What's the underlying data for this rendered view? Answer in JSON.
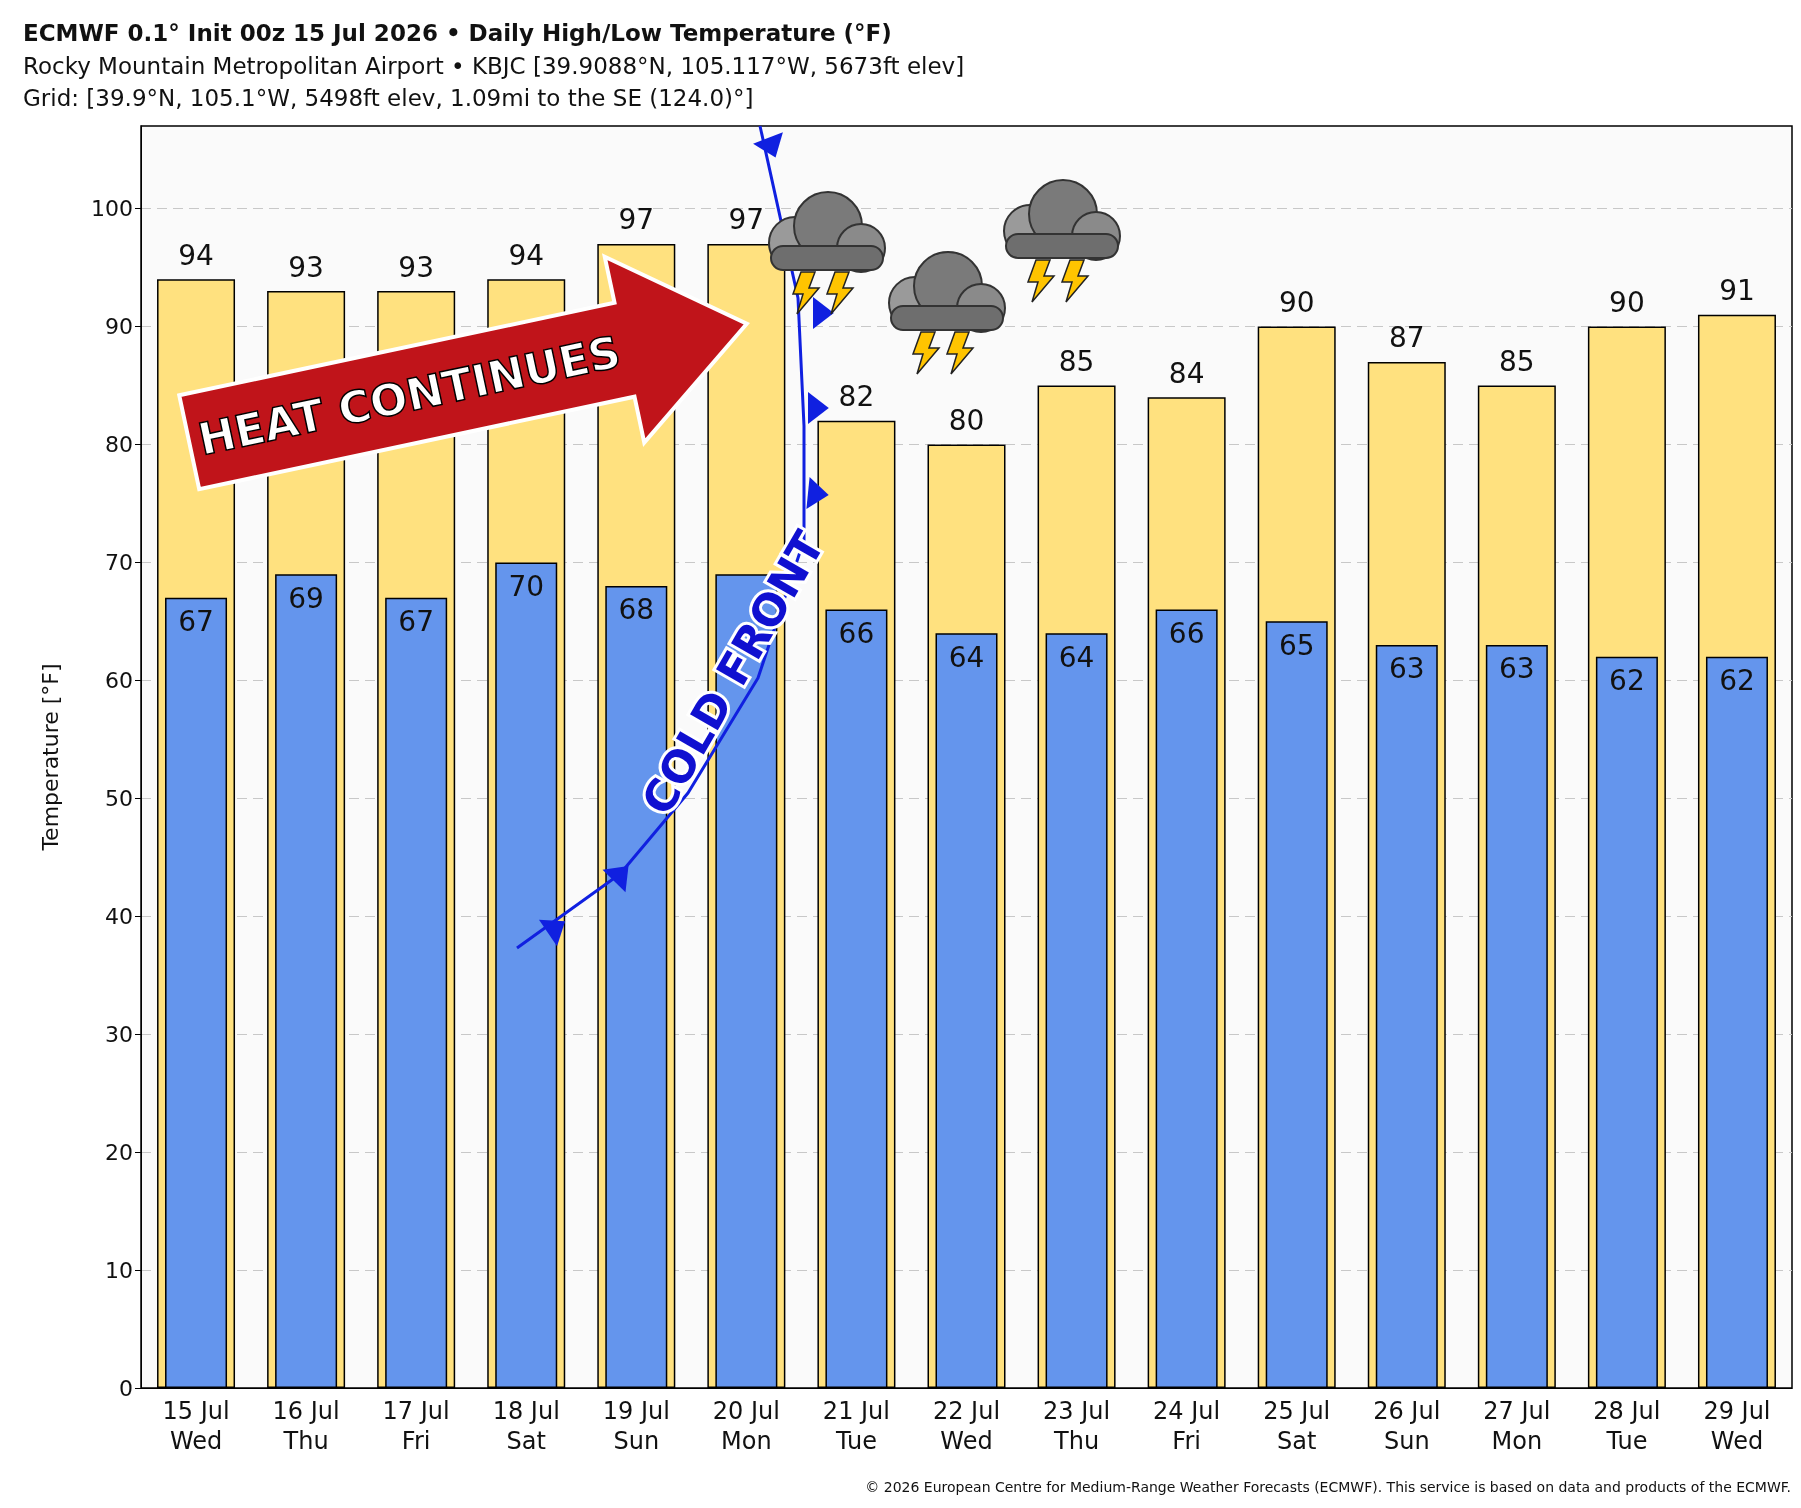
{
  "chart_data": {
    "type": "bar",
    "title": "ECMWF 0.1° Init 00z 15 Jul 2026 • Daily High/Low Temperature (°F)",
    "subtitle": "Rocky Mountain Metropolitan Airport • KBJC [39.9088°N, 105.117°W, 5673ft elev]\nGrid: [39.9°N, 105.1°W, 5498ft elev, 1.09mi to the SE (124.0)°]",
    "ylabel": "Temperature [°F]",
    "categories": [
      "15 Jul\nWed",
      "16 Jul\nThu",
      "17 Jul\nFri",
      "18 Jul\nSat",
      "19 Jul\nSun",
      "20 Jul\nMon",
      "21 Jul\nTue",
      "22 Jul\nWed",
      "23 Jul\nThu",
      "24 Jul\nFri",
      "25 Jul\nSat",
      "26 Jul\nSun",
      "27 Jul\nMon",
      "28 Jul\nTue",
      "29 Jul\nWed"
    ],
    "series": [
      {
        "color": "#ffe17f",
        "values": [
          94,
          93,
          93,
          94,
          97,
          97,
          82,
          80,
          85,
          84,
          90,
          87,
          85,
          90,
          91
        ],
        "value_labels": [
          "94",
          "93",
          "93",
          "94",
          "97",
          "97",
          "82",
          "80",
          "85",
          "84",
          "90",
          "87",
          "85",
          "90",
          "91"
        ]
      },
      {
        "color": "#6495ed",
        "values": [
          67,
          69,
          67,
          70,
          68,
          69,
          66,
          64,
          64,
          66,
          65,
          63,
          63,
          62,
          62
        ],
        "value_labels": [
          "67",
          "69",
          "67",
          "70",
          "68",
          null,
          "66",
          "64",
          "64",
          "66",
          "65",
          "63",
          "63",
          "62",
          "62"
        ]
      }
    ],
    "ylim": [
      0,
      107
    ],
    "yticks": [
      0,
      10,
      20,
      30,
      40,
      50,
      60,
      70,
      80,
      90,
      100
    ],
    "grid": "y",
    "annotations": [
      "HEAT CONTINUES",
      "COLD FRONT",
      "© 2026 European Centre for Medium-Range Weather Forecasts (ECMWF). This service is based on data and products of the ECMWF."
    ]
  }
}
